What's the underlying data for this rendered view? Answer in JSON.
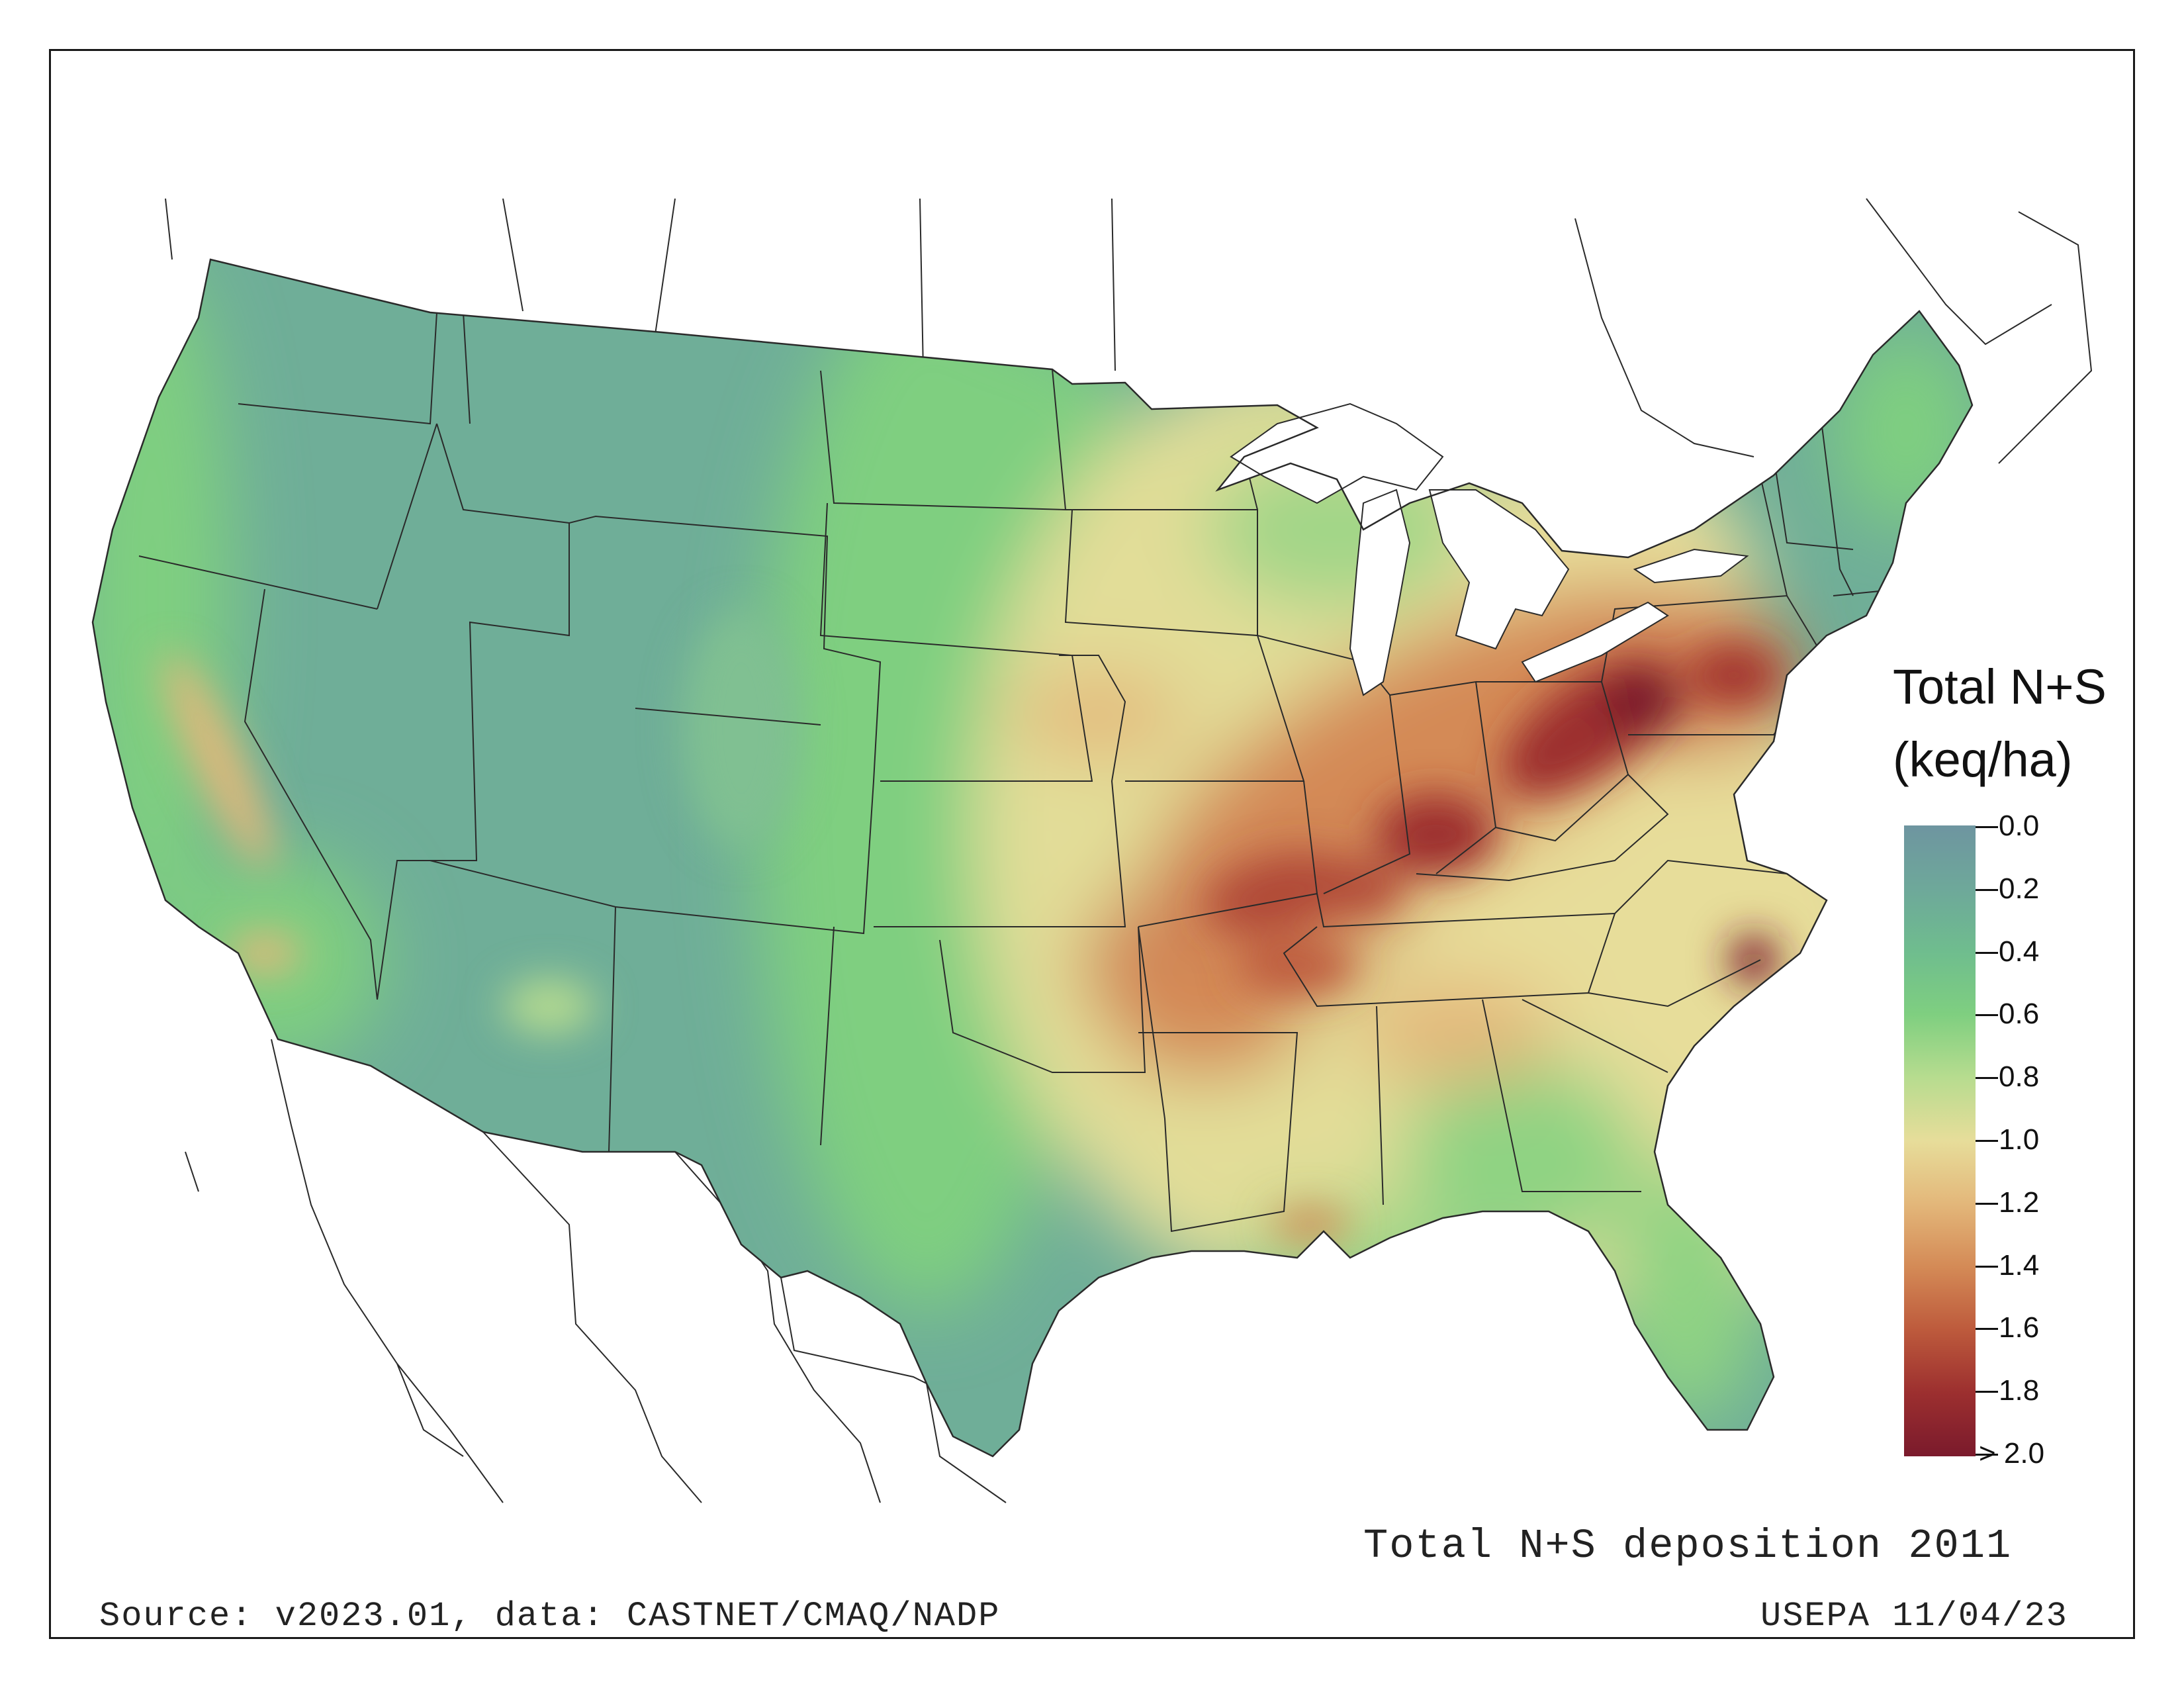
{
  "map": {
    "region": "Contiguous United States",
    "title": "Total N+S deposition 2011",
    "source": "Source: v2023.01, data: CASTNET/CMAQ/NADP",
    "credit": "USEPA 11/04/23"
  },
  "legend": {
    "title_line1": "Total N+S",
    "title_line2": "(keq/ha)",
    "labels": [
      "0.0",
      "0.2",
      "0.4",
      "0.6",
      "0.8",
      "1.0",
      "1.2",
      "1.4",
      "1.6",
      "1.8",
      "> 2.0"
    ],
    "colors": [
      "#6e95a0",
      "#6ea89a",
      "#6fbd8e",
      "#7fcf80",
      "#b7dc8f",
      "#e7dd9a",
      "#e3b77a",
      "#d48a56",
      "#bd5a3c",
      "#9c2f2f",
      "#7a1a2c"
    ]
  },
  "colors": {
    "land_low": "#6fae98",
    "land_mid": "#7fcf80",
    "land_east": "#e7dd9a",
    "high": "#9c2f2f",
    "water": "#ffffff",
    "border": "#2a2a2a"
  }
}
